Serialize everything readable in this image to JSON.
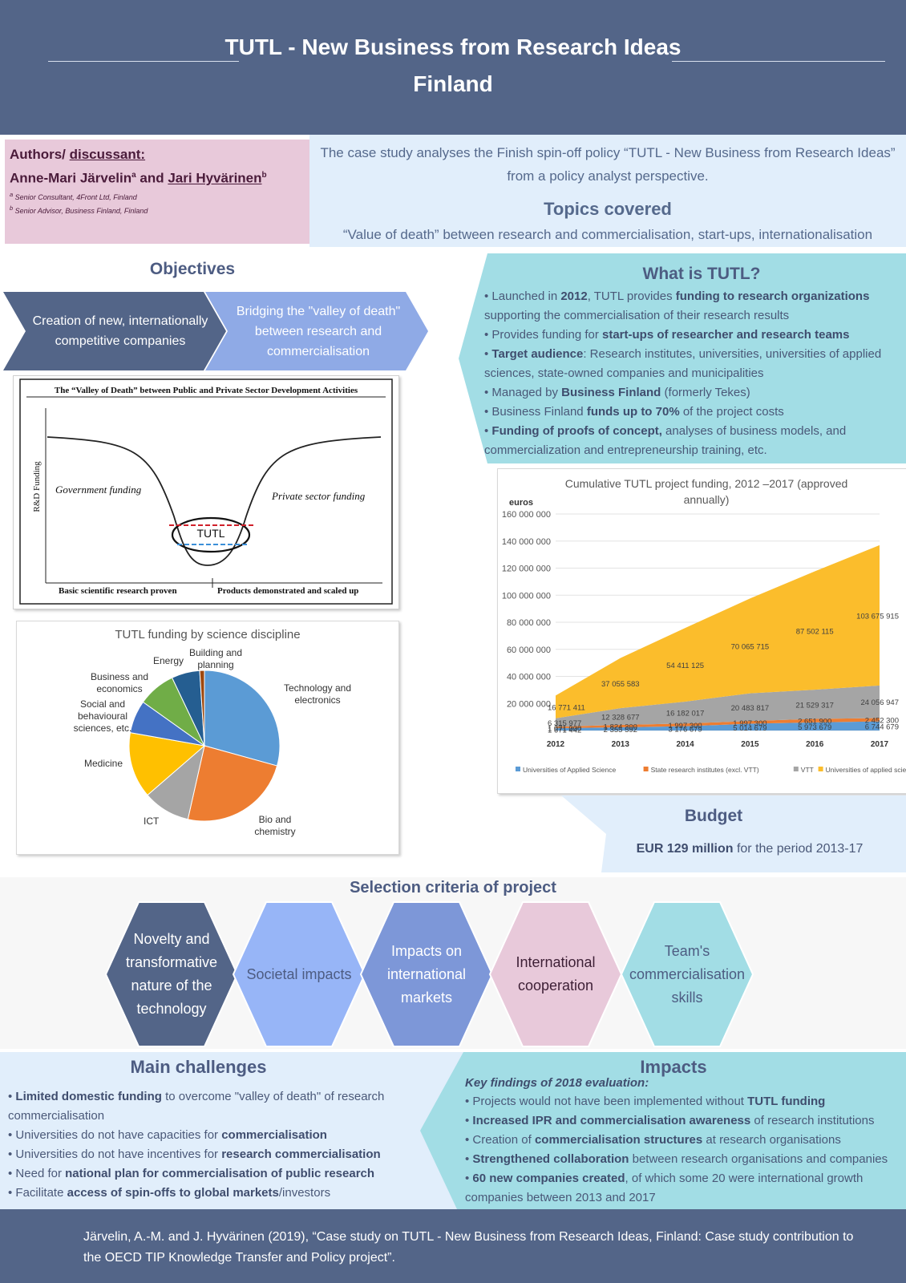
{
  "header": {
    "title_line1": "TUTL - New Business from Research Ideas",
    "title_line2": "Finland"
  },
  "authors": {
    "label_prefix": "Authors/ ",
    "label_link": "discussant:",
    "name1": "Anne-Mari Järvelin",
    "sup1": "a",
    "and": " and ",
    "name2": "Jari Hyvärinen",
    "sup2": "b",
    "aff1_sup": "a",
    "aff1": " Senior Consultant, 4Front Ltd, Finland",
    "aff2_sup": "b",
    "aff2": " Senior Advisor, Business Finland, Finland"
  },
  "intro": {
    "text_line1": "The case study analyses the Finish spin-off policy “TUTL - New Business from Research Ideas”",
    "text_line2": "from a policy analyst perspective.",
    "topics_title": "Topics covered",
    "topics_text": "“Value of death” between research and commercialisation, start-ups, internationalisation"
  },
  "objectives": {
    "title": "Objectives",
    "items": [
      "Creation of new, internationally competitive companies",
      "Bridging the \"valley of death\" between research and commercialisation"
    ],
    "colors": [
      "#536588",
      "#8faae6"
    ]
  },
  "valley": {
    "title": "The “Valley of Death” between Public and Private Sector Development Activities",
    "ylabel": "R&D Funding",
    "left_label": "Government funding",
    "right_label": "Private sector funding",
    "center_label": "TUTL",
    "bottom_left": "Basic scientific research proven",
    "bottom_right": "Products demonstrated and scaled up"
  },
  "what": {
    "title": "What is TUTL?",
    "items": [
      {
        "pre": "Launched in ",
        "b1": "2012",
        "mid": ", TUTL provides ",
        "b2": "funding to research organizations",
        "post": " supporting the commercialisation of their research results"
      },
      {
        "pre": "Provides funding for ",
        "b1": "start-ups of researcher and research teams",
        "mid": "",
        "b2": "",
        "post": ""
      },
      {
        "pre": "",
        "b1": "Target audience",
        "mid": ": Research institutes, universities, universities of applied sciences, state-owned companies and municipalities",
        "b2": "",
        "post": ""
      },
      {
        "pre": "Managed by ",
        "b1": "Business Finland",
        "mid": " (formerly Tekes)",
        "b2": "",
        "post": ""
      },
      {
        "pre": "Business Finland ",
        "b1": "funds up to 70%",
        "mid": " of the project costs",
        "b2": "",
        "post": ""
      },
      {
        "pre": "",
        "b1": "Funding of proofs of concept,",
        "mid": " analyses of business models, and commercialization and entrepreneurship training, etc.",
        "b2": "",
        "post": ""
      }
    ]
  },
  "chart_data": [
    {
      "type": "pie",
      "title": "TUTL funding by science discipline",
      "labels": [
        "Technology and electronics",
        "Bio and chemistry",
        "ICT",
        "Medicine",
        "Social and behavioural sciences, etc.",
        "Business and economics",
        "Energy",
        "Building and planning"
      ],
      "values": [
        29,
        24,
        10,
        14,
        7,
        8,
        6,
        1
      ],
      "colors": [
        "#5b9bd5",
        "#ed7d31",
        "#a5a5a5",
        "#ffc000",
        "#4472c4",
        "#70ad47",
        "#255e91",
        "#9e480e"
      ]
    },
    {
      "type": "area",
      "title": "Cumulative TUTL project funding, 2012 –2017 (approved annually)",
      "ylabel": "euros",
      "x": [
        "2012",
        "2013",
        "2014",
        "2015",
        "2016",
        "2017"
      ],
      "ylim": [
        0,
        160000000
      ],
      "yticks": [
        0,
        20000000,
        40000000,
        60000000,
        80000000,
        100000000,
        120000000,
        140000000,
        160000000
      ],
      "ytick_labels": [
        "",
        "20 000 000",
        "40 000 000",
        "60 000 000",
        "80 000 000",
        "100 000 000",
        "120 000 000",
        "140 000 000",
        "160 000 000"
      ],
      "series": [
        {
          "name": "Universities of Applied Science",
          "color": "#5b9bd5",
          "values": [
            1671442,
            2355592,
            3176679,
            5014679,
            5973679,
            6744679
          ],
          "labels": [
            "1 671 442",
            "2 355 592",
            "3 176 679",
            "5 014 679",
            "5 973 679",
            "6 744 679"
          ]
        },
        {
          "name": "State research institutes (excl. VTT)",
          "color": "#ed7d31",
          "values": [
            1071000,
            1824300,
            1997300,
            1997300,
            2651900,
            2452300
          ],
          "labels": [
            "1 071 000",
            "1 824 300",
            "1 997 300",
            "1 997 300",
            "2 651 900",
            "2 452 300"
          ]
        },
        {
          "name": "VTT",
          "color": "#a5a5a5",
          "values": [
            6315977,
            12328677,
            16182017,
            20483817,
            21529317,
            24056947
          ],
          "labels": [
            "6 315 977",
            "12 328 677",
            "16 182 017",
            "20 483 817",
            "21 529 317",
            "24 056 947"
          ]
        },
        {
          "name": "Universities of applied sciences",
          "color": "#fbbd2c",
          "values": [
            16771411,
            37055583,
            54411125,
            70065715,
            87502115,
            103675915
          ],
          "labels": [
            "16 771 411",
            "37 055 583",
            "54 411 125",
            "70 065 715",
            "87 502 115",
            "103 675 915"
          ]
        }
      ]
    }
  ],
  "budget": {
    "title": "Budget",
    "amount": "EUR 129 million",
    "period": " for the period 2013-17"
  },
  "criteria": {
    "title": "Selection criteria of project",
    "items": [
      {
        "label": "Novelty and transformative nature of the technology",
        "fill": "#536588",
        "text": "#ffffff"
      },
      {
        "label": "Societal impacts",
        "fill": "#97b5f7",
        "text": "#4d5c82"
      },
      {
        "label": "Impacts on international markets",
        "fill": "#7d97d8",
        "text": "#ffffff"
      },
      {
        "label": "International cooperation",
        "fill": "#e8c9da",
        "text": "#3d1f35"
      },
      {
        "label": "Team's commercialisation skills",
        "fill": "#a2dde5",
        "text": "#4d5c82"
      }
    ]
  },
  "challenges": {
    "title": "Main challenges",
    "items": [
      {
        "pre": "",
        "b": "Limited domestic funding",
        "post": " to overcome \"valley of death\" of research commercialisation"
      },
      {
        "pre": "Universities do not have capacities for ",
        "b": "commercialisation",
        "post": ""
      },
      {
        "pre": "Universities do not have incentives for ",
        "b": "research commercialisation",
        "post": ""
      },
      {
        "pre": "Need for ",
        "b": "national plan for commercialisation of public research",
        "post": ""
      },
      {
        "pre": "Facilitate ",
        "b": "access of spin-offs to global markets",
        "post": "/investors"
      }
    ]
  },
  "impacts": {
    "title": "Impacts",
    "subtitle": "Key findings of 2018 evaluation:",
    "items": [
      {
        "pre": "Projects would not have been implemented without ",
        "b": "TUTL funding",
        "post": ""
      },
      {
        "pre": "",
        "b": "Increased IPR and commercialisation awareness",
        "post": " of research institutions"
      },
      {
        "pre": "Creation of ",
        "b": "commercialisation structures",
        "post": " at research organisations"
      },
      {
        "pre": "",
        "b": "Strengthened collaboration",
        "post": " between research organisations and companies"
      },
      {
        "pre": "",
        "b": "60 new companies created",
        "post": ", of which some 20 were international growth companies between 2013 and 2017"
      }
    ]
  },
  "footer": {
    "line1": "Järvelin, A.-M. and J. Hyvärinen (2019), “Case study on TUTL - New Business from Research Ideas, Finland: Case study contribution to",
    "line2": "the OECD TIP Knowledge Transfer and Policy project”."
  }
}
